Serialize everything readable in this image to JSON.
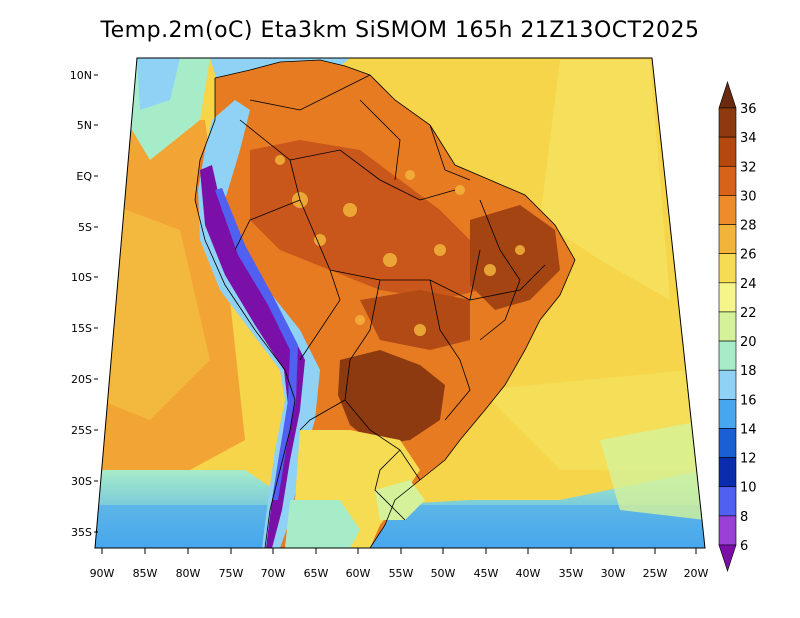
{
  "title": "Temp.2m(oC) Eta3km SiSMOM 165h 21Z13OCT2025",
  "lat_ticks": [
    "10N",
    "5N",
    "EQ",
    "5S",
    "10S",
    "15S",
    "20S",
    "25S",
    "30S",
    "35S"
  ],
  "lon_ticks": [
    "90W",
    "85W",
    "80W",
    "75W",
    "70W",
    "65W",
    "60W",
    "55W",
    "50W",
    "45W",
    "40W",
    "35W",
    "30W",
    "25W",
    "20W"
  ],
  "colorbar": {
    "labels": [
      "36",
      "34",
      "32",
      "30",
      "28",
      "26",
      "24",
      "22",
      "20",
      "18",
      "16",
      "14",
      "12",
      "10",
      "8",
      "6"
    ],
    "colors": [
      "#6b2a10",
      "#8e3a10",
      "#b5480f",
      "#d9621a",
      "#ef8c2a",
      "#f3b43c",
      "#f6dc52",
      "#f5f58c",
      "#d5f29a",
      "#a7ecc9",
      "#8fd2f5",
      "#47a6ee",
      "#1b5fd6",
      "#0c2cb0",
      "#5060f0",
      "#9a3fd8",
      "#7b10a8"
    ],
    "min": 6,
    "max": 36,
    "step": 2,
    "unit": "oC"
  },
  "map": {
    "projection": "polar stereographic",
    "ocean_colors": {
      "atlantic": "#f6d54a",
      "pacific": "#f4b23c",
      "south": "#62b8f0",
      "coast": "#a7ecc9"
    },
    "land_colors": {
      "amazon": "#d9621a",
      "interior_hot": "#8e3a10",
      "andes": "#7b10a8",
      "andes_snow": "#8fd2f5",
      "south": "#f6dc52",
      "patagonia": "#5060f0"
    }
  }
}
